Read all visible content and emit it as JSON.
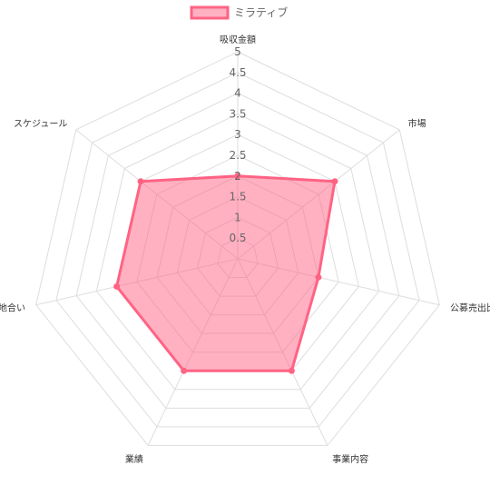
{
  "chart_data": {
    "type": "radar",
    "categories": [
      "吸収金額",
      "市場",
      "公募売出比",
      "事業内容",
      "業績",
      "地合い",
      "スケジュール"
    ],
    "series": [
      {
        "name": "ミラティブ",
        "values": [
          2,
          3,
          2,
          3,
          3,
          3,
          3
        ]
      }
    ],
    "r_ticks": [
      "0.5",
      "1",
      "1.5",
      "2",
      "2.5",
      "3",
      "3.5",
      "4",
      "4.5",
      "5"
    ],
    "r_range": [
      0,
      5
    ],
    "grid": true,
    "legend_position": "top",
    "colors": {
      "series_fill": "#ff6384",
      "series_stroke": "#ff6384",
      "grid": "#dddddd",
      "tick_text": "#666666",
      "label_text": "#333333"
    }
  }
}
